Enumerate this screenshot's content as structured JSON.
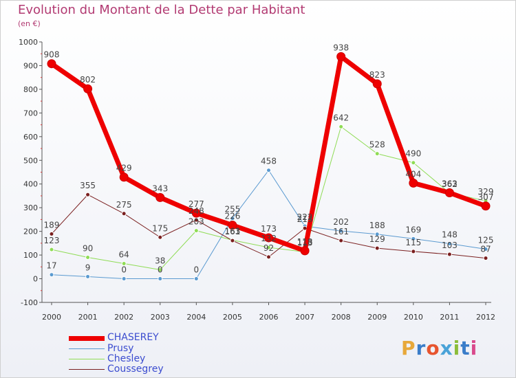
{
  "chart_data": {
    "type": "line",
    "title": "Evolution du Montant de la Dette par Habitant",
    "subtitle": "(en €)",
    "x": [
      "2000",
      "2001",
      "2002",
      "2003",
      "2004",
      "2005",
      "2006",
      "2007",
      "2008",
      "2009",
      "2010",
      "2011",
      "2012"
    ],
    "ylim": [
      -100,
      1000
    ],
    "yticks": [
      -100,
      0,
      100,
      200,
      300,
      400,
      500,
      600,
      700,
      800,
      900,
      1000
    ],
    "grid": false,
    "legend": "bottom-left",
    "series": [
      {
        "name": "CHASEREY",
        "color": "#ee0000",
        "values": [
          908,
          802,
          429,
          343,
          277,
          226,
          173,
          118,
          938,
          823,
          404,
          363,
          307
        ]
      },
      {
        "name": "Prusy",
        "color": "#5a9ad0",
        "values": [
          17,
          9,
          0,
          0,
          0,
          255,
          458,
          222,
          202,
          188,
          169,
          148,
          125
        ]
      },
      {
        "name": "Chesley",
        "color": "#8fdc55",
        "values": [
          123,
          90,
          64,
          38,
          203,
          163,
          132,
          113,
          642,
          528,
          490,
          362,
          329
        ]
      },
      {
        "name": "Coussegrey",
        "color": "#7a1f1f",
        "values": [
          189,
          355,
          275,
          175,
          248,
          161,
          92,
          213,
          161,
          129,
          115,
          103,
          87
        ]
      }
    ]
  },
  "logo": {
    "text": "Proxiti",
    "colors": [
      "#e7a83a",
      "#3a7dc9",
      "#e7552f",
      "#4aa3d8",
      "#8cbd3a",
      "#3a7dc9",
      "#d94a8c"
    ]
  }
}
